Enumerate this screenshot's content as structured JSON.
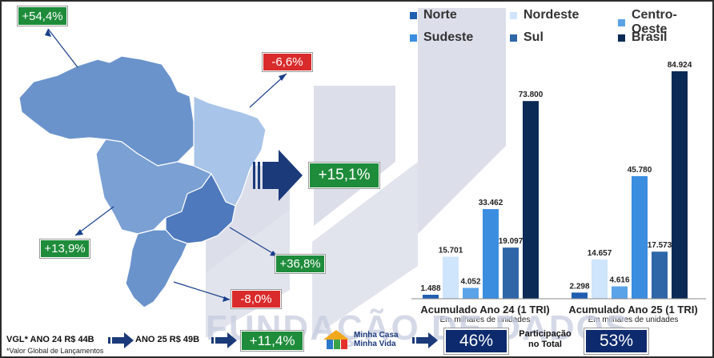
{
  "legend": [
    {
      "label": "Norte",
      "color": "#1f5fb0"
    },
    {
      "label": "Nordeste",
      "color": "#cfe5fb"
    },
    {
      "label": "Centro-Oeste",
      "color": "#5ba3e8"
    },
    {
      "label": "Sudeste",
      "color": "#3b8de0"
    },
    {
      "label": "Sul",
      "color": "#2f66a8"
    },
    {
      "label": "Brasil",
      "color": "#0b2a55"
    }
  ],
  "map_badges": {
    "north": "+54,4%",
    "northeast": "-6,6%",
    "center_west": "+13,9%",
    "southeast": "+36,8%",
    "south": "-8,0%",
    "total": "+15,1%"
  },
  "chart_data": {
    "type": "bar",
    "categories": [
      "Acumulado Ano 24 (1 TRI)",
      "Acumulado Ano 25 (1 TRI)"
    ],
    "series": [
      {
        "name": "Norte",
        "values": [
          1488,
          2298
        ],
        "labels": [
          "1.488",
          "2.298"
        ]
      },
      {
        "name": "Nordeste",
        "values": [
          15701,
          14657
        ],
        "labels": [
          "15.701",
          "14.657"
        ]
      },
      {
        "name": "Centro-Oeste",
        "values": [
          4052,
          4616
        ],
        "labels": [
          "4.052",
          "4.616"
        ]
      },
      {
        "name": "Sudeste",
        "values": [
          33462,
          45780
        ],
        "labels": [
          "33.462",
          "45.780"
        ]
      },
      {
        "name": "Sul",
        "values": [
          19097,
          17573
        ],
        "labels": [
          "19.097",
          "17.573"
        ]
      },
      {
        "name": "Brasil",
        "values": [
          73800,
          84924
        ],
        "labels": [
          "73.800",
          "84.924"
        ]
      }
    ],
    "subtitle": "Em milhares de unidades",
    "ylim": [
      0,
      90000
    ]
  },
  "bottom": {
    "vgl_text": "VGL* ANO 24 R$ 44B",
    "ano25_text": "ANO 25 R$ 49B",
    "vgl_growth": "+11,4%",
    "footnote": "*Valor Global de Lançamentos",
    "logo_line1": "Minha Casa",
    "logo_line2": "Minha Vida",
    "share_24": "46%",
    "participation_line1": "Participação",
    "participation_line2": "no Total",
    "share_25": "53%"
  },
  "watermark": "FUNDAÇÃO DE DADOS"
}
